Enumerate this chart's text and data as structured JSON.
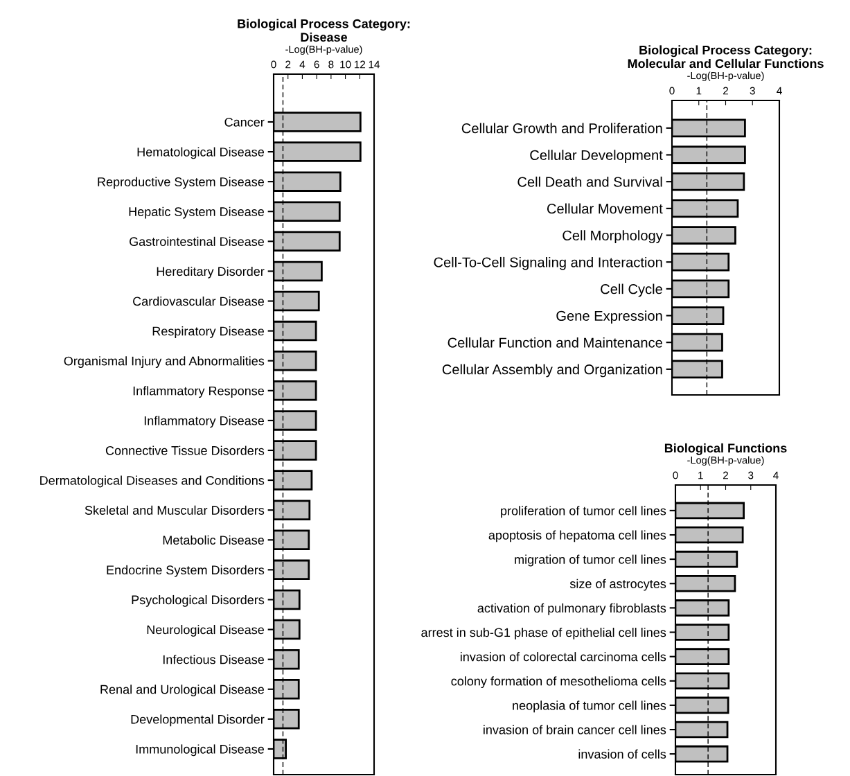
{
  "chart_data": [
    {
      "type": "bar",
      "orientation": "horizontal",
      "title": "Biological Process Category:\nDisease",
      "xlabel": "-Log(BH-p-value)",
      "categories": [
        "Cancer",
        "Hematological Disease",
        "Reproductive System Disease",
        "Hepatic System Disease",
        "Gastrointestinal Disease",
        "Hereditary Disorder",
        "Cardiovascular Disease",
        "Respiratory Disease",
        "Organismal Injury and Abnormalities",
        "Inflammatory Response",
        "Inflammatory Disease",
        "Connective Tissue Disorders",
        "Dermatological Diseases and Conditions",
        "Skeletal and Muscular Disorders",
        "Metabolic Disease",
        "Endocrine System Disorders",
        "Psychological Disorders",
        "Neurological Disease",
        "Infectious Disease",
        "Renal and Urological Disease",
        "Developmental Disorder",
        "Immunological Disease"
      ],
      "values": [
        12.1,
        12.1,
        9.3,
        9.2,
        9.2,
        6.7,
        6.3,
        5.9,
        5.9,
        5.9,
        5.9,
        5.9,
        5.3,
        5.0,
        4.9,
        4.9,
        3.6,
        3.6,
        3.5,
        3.5,
        3.5,
        1.7
      ],
      "color": "#c0c0c0",
      "xlim": [
        0,
        14
      ],
      "xticks": [
        0,
        2,
        4,
        6,
        8,
        10,
        12,
        14
      ],
      "grid": false,
      "legend": false,
      "ref_lines": [
        {
          "axis": "x",
          "value": 1.3,
          "line_style": "dashed",
          "color": "#000000"
        }
      ]
    },
    {
      "type": "bar",
      "orientation": "horizontal",
      "title": "Biological Process Category:\nMolecular and Cellular Functions",
      "xlabel": "-Log(BH-p-value)",
      "categories": [
        "Cellular Growth and Proliferation",
        "Cellular Development",
        "Cell Death and Survival",
        "Cellular Movement",
        "Cell Morphology",
        "Cell-To-Cell Signaling and Interaction",
        "Cell Cycle",
        "Gene Expression",
        "Cellular Function and Maintenance",
        "Cellular Assembly and Organization"
      ],
      "values": [
        2.72,
        2.72,
        2.68,
        2.45,
        2.36,
        2.11,
        2.11,
        1.91,
        1.87,
        1.87
      ],
      "color": "#c0c0c0",
      "xlim": [
        0,
        4
      ],
      "xticks": [
        0,
        1,
        2,
        3,
        4
      ],
      "grid": false,
      "legend": false,
      "ref_lines": [
        {
          "axis": "x",
          "value": 1.3,
          "line_style": "dashed",
          "color": "#000000"
        }
      ]
    },
    {
      "type": "bar",
      "orientation": "horizontal",
      "title": "Biological Functions",
      "xlabel": "-Log(BH-p-value)",
      "categories": [
        "proliferation of tumor cell lines",
        "apoptosis of hepatoma cell lines",
        "migration of tumor cell lines",
        "size of astrocytes",
        "activation of pulmonary fibroblasts",
        "arrest in sub-G1 phase of epithelial cell lines",
        "invasion of colorectal carcinoma cells",
        "colony formation of mesothelioma cells",
        "neoplasia of tumor cell lines",
        "invasion of brain cancer cell lines",
        "invasion of cells"
      ],
      "values": [
        2.72,
        2.68,
        2.45,
        2.37,
        2.12,
        2.12,
        2.12,
        2.12,
        2.1,
        2.07,
        2.07
      ],
      "color": "#c0c0c0",
      "xlim": [
        0,
        4
      ],
      "xticks": [
        0,
        1,
        2,
        3,
        4
      ],
      "grid": false,
      "legend": false,
      "ref_lines": [
        {
          "axis": "x",
          "value": 1.3,
          "line_style": "dashed",
          "color": "#000000"
        }
      ]
    }
  ]
}
